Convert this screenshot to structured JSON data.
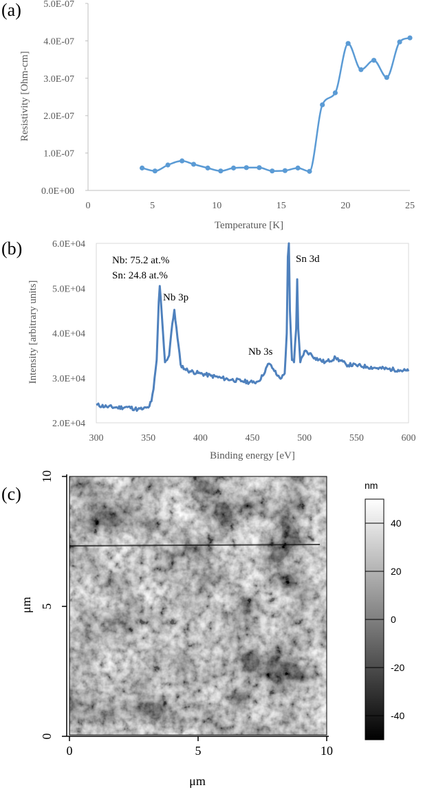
{
  "panels": {
    "a": {
      "label": "(a)"
    },
    "b": {
      "label": "(b)"
    },
    "c": {
      "label": "(c)"
    }
  },
  "chart_data": [
    {
      "type": "line",
      "xlabel": "Temperature [K]",
      "ylabel": "Resistivity [Ohm-cm]",
      "xlim": [
        0,
        25
      ],
      "ylim": [
        0,
        5e-07
      ],
      "xticks": [
        "0",
        "5",
        "10",
        "15",
        "20",
        "25"
      ],
      "yticks": [
        "0.0E+00",
        "1.0E-07",
        "2.0E-07",
        "3.0E-07",
        "4.0E-07",
        "5.0E-07"
      ],
      "color": "#5b9bd5",
      "grid": false,
      "series": [
        {
          "x": [
            4.2,
            5.2,
            6.2,
            7.3,
            8.2,
            9.3,
            10.3,
            11.3,
            12.3,
            13.3,
            14.3,
            15.3,
            16.3,
            17.2,
            18.2,
            19.2,
            20.2,
            21.2,
            22.2,
            23.2,
            24.2,
            25.0
          ],
          "values": [
            6e-08,
            5.2e-08,
            6.8e-08,
            7.9e-08,
            7e-08,
            6e-08,
            5.2e-08,
            6e-08,
            6.1e-08,
            6.1e-08,
            5.2e-08,
            5.3e-08,
            6e-08,
            5.1e-08,
            2.29e-07,
            2.61e-07,
            3.93e-07,
            3.23e-07,
            3.48e-07,
            3.02e-07,
            3.97e-07,
            4.08e-07
          ]
        }
      ]
    },
    {
      "type": "line",
      "xlabel": "Binding energy [eV]",
      "ylabel": "Intensity [arbitrary units]",
      "xlim": [
        300,
        600
      ],
      "ylim": [
        20000,
        60000
      ],
      "xticks": [
        "300",
        "350",
        "400",
        "450",
        "500",
        "550",
        "600"
      ],
      "yticks": [
        "2.0E+04",
        "3.0E+04",
        "4.0E+04",
        "5.0E+04",
        "6.0E+04"
      ],
      "color": "#4f81bd",
      "grid": false,
      "annotations": [
        "Nb: 75.2 at.%",
        "Sn: 24.8 at.%",
        "Nb 3p",
        "Nb 3s",
        "Sn 3d"
      ],
      "series": [
        {
          "x": [
            300,
            310,
            320,
            330,
            340,
            345,
            350,
            353,
            355,
            358,
            360,
            361,
            363,
            366,
            370,
            372,
            375,
            378,
            381,
            385,
            390,
            400,
            410,
            420,
            430,
            440,
            450,
            455,
            460,
            463,
            466,
            470,
            474,
            478,
            481,
            483,
            484,
            485,
            486,
            488,
            490,
            492,
            493,
            494,
            496,
            500,
            505,
            510,
            520,
            530,
            540,
            550,
            560,
            570,
            580,
            590,
            600
          ],
          "values": [
            24000,
            23600,
            23400,
            23500,
            23000,
            23100,
            23400,
            24800,
            27500,
            34000,
            47000,
            50500,
            44000,
            33500,
            35000,
            40000,
            45200,
            39000,
            33000,
            32000,
            31500,
            31000,
            30500,
            30000,
            29600,
            29300,
            29000,
            29200,
            30500,
            32200,
            33200,
            32000,
            30500,
            30000,
            31000,
            40000,
            57000,
            60000,
            45000,
            34000,
            33500,
            41000,
            52000,
            41000,
            33500,
            36000,
            35500,
            34500,
            33500,
            34500,
            33000,
            32800,
            32500,
            32200,
            32000,
            31800,
            31500
          ]
        }
      ]
    },
    {
      "type": "heatmap",
      "xlabel": "μm",
      "ylabel": "μm",
      "xlim": [
        0,
        10
      ],
      "ylim": [
        0,
        10
      ],
      "xticks": [
        "0",
        "5",
        "10"
      ],
      "yticks": [
        "0",
        "5",
        "10"
      ],
      "colorbar": {
        "unit": "nm",
        "ticks": [
          "40",
          "20",
          "0",
          "-20",
          "-40"
        ],
        "range": [
          -50,
          50
        ],
        "colormap": "gray"
      }
    }
  ]
}
